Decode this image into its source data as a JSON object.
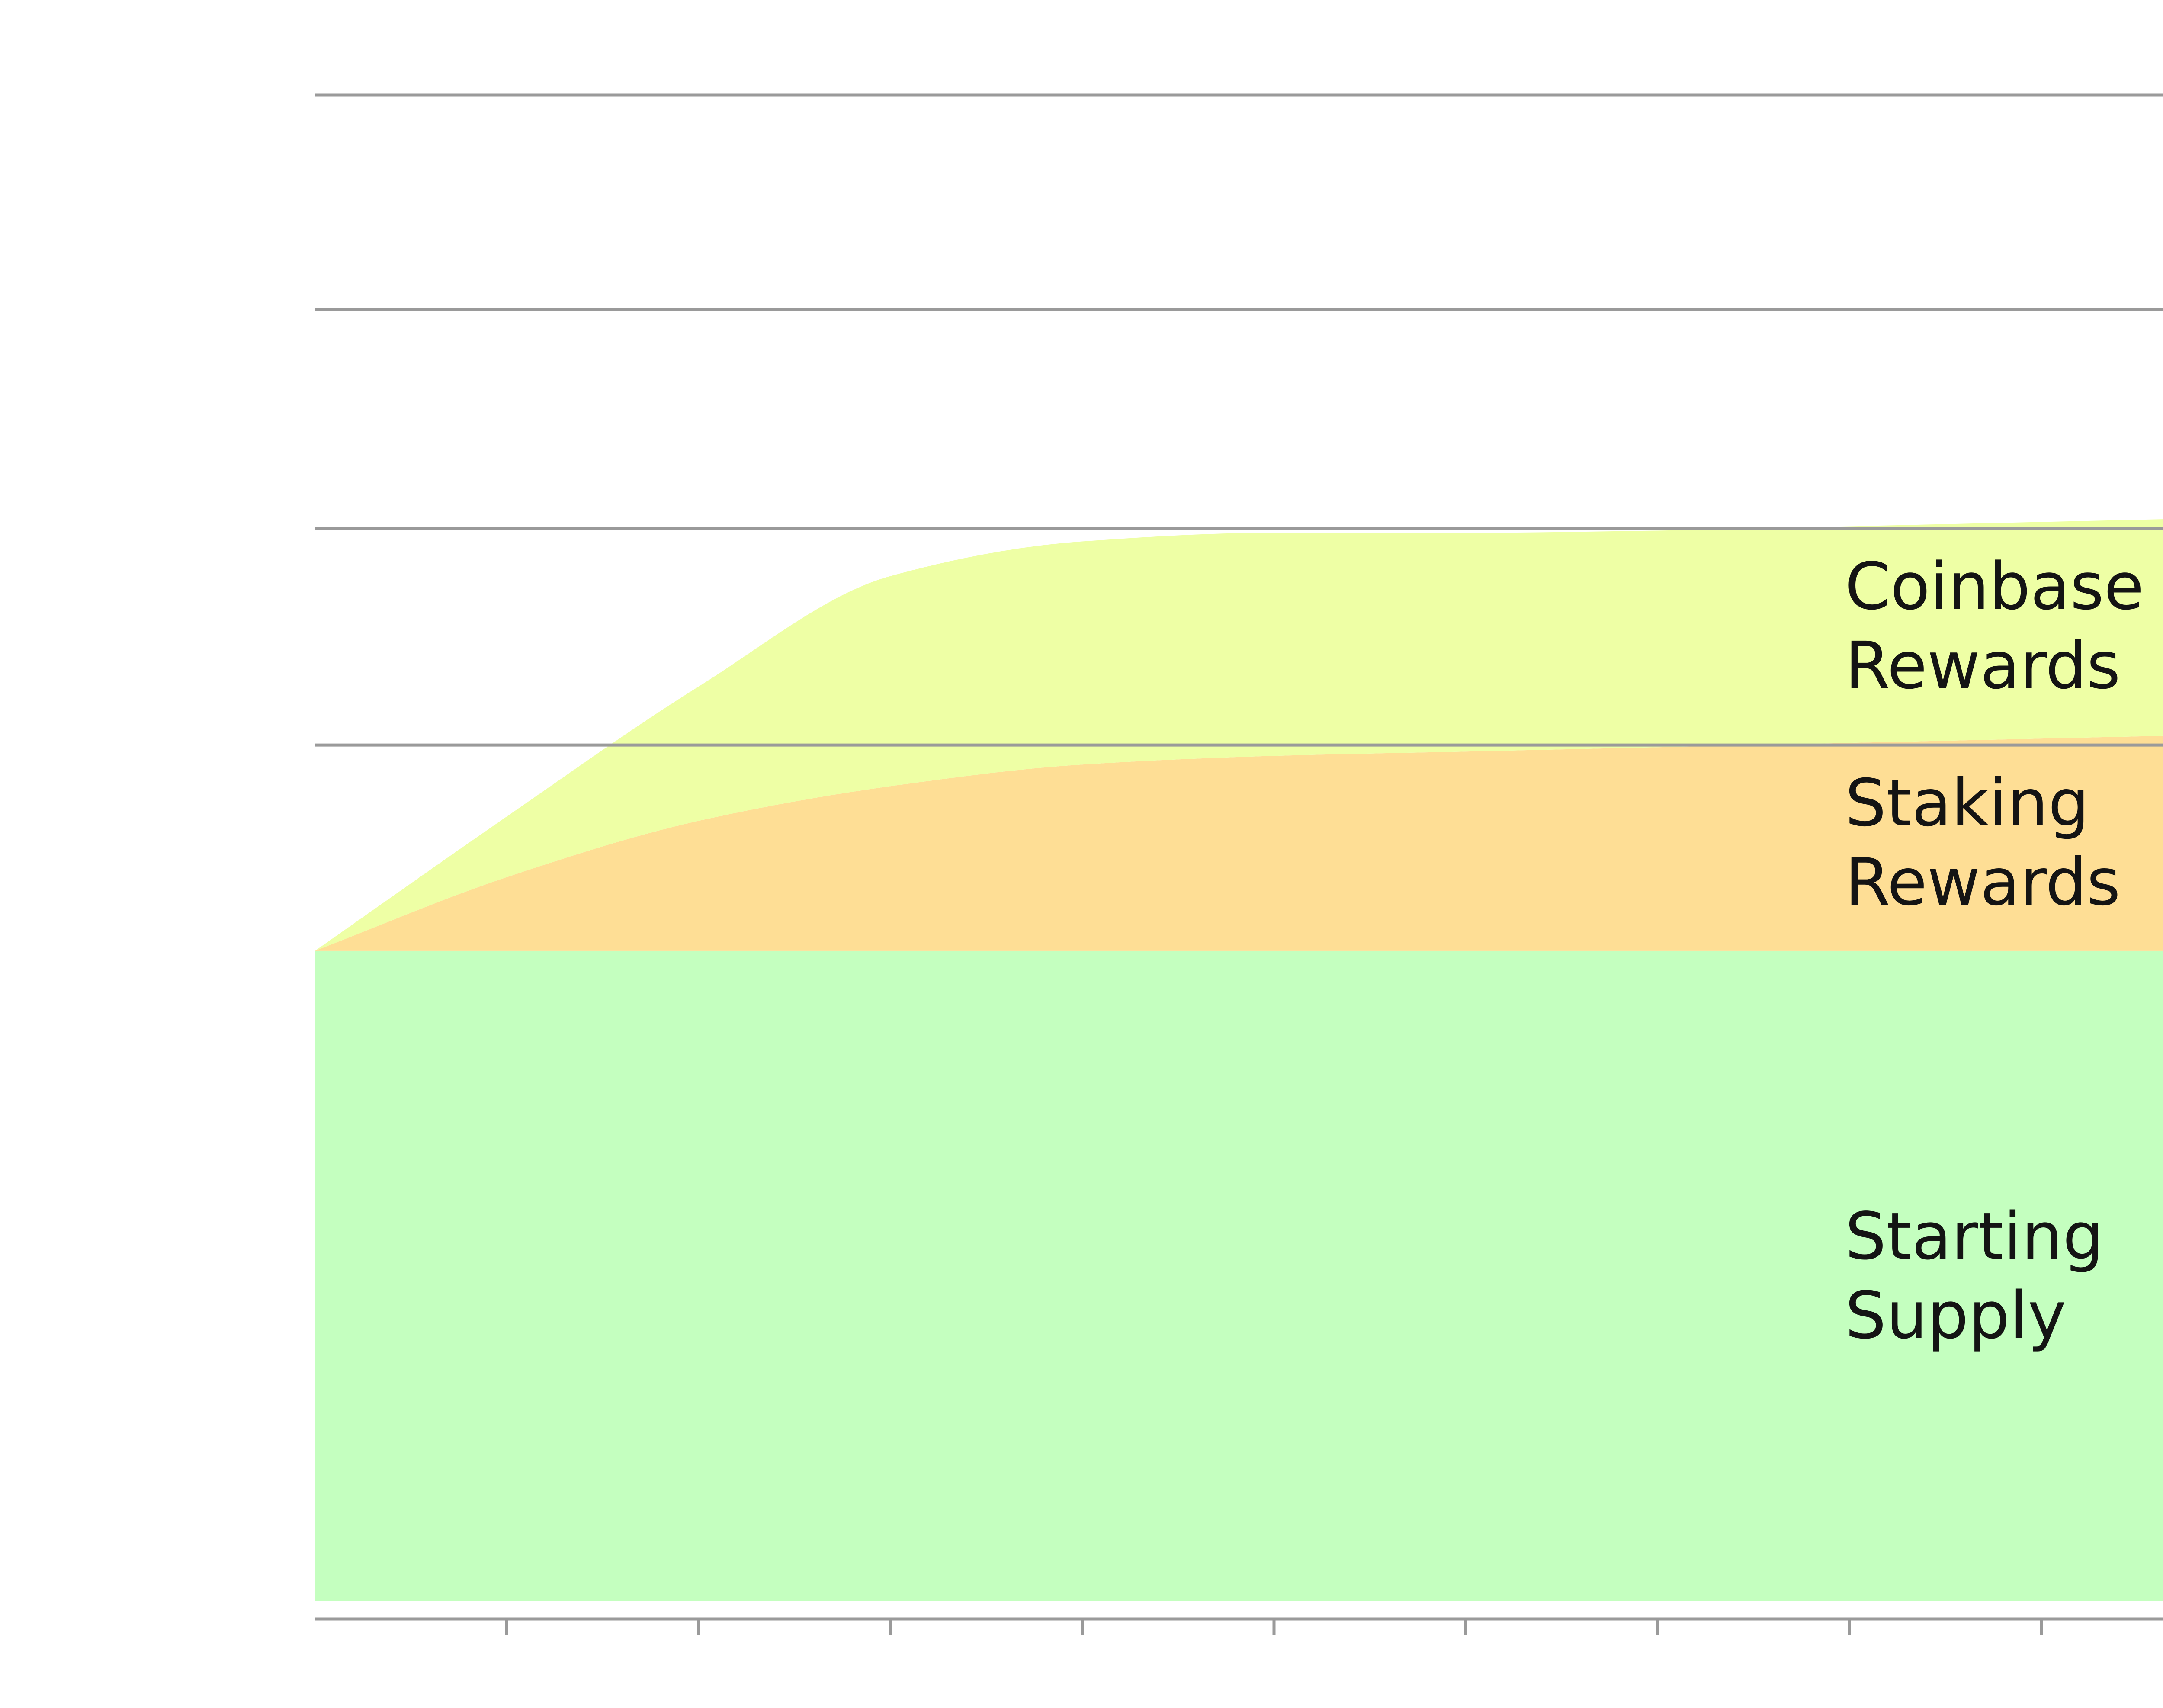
{
  "chart_data": {
    "type": "area",
    "stacked": true,
    "title": "",
    "xlabel": "",
    "ylabel": "",
    "x": [
      0,
      1,
      2,
      3,
      4,
      5,
      6,
      7,
      8,
      9,
      10
    ],
    "xlim": [
      0,
      10
    ],
    "ylim": [
      0,
      7
    ],
    "grid": true,
    "legend": "inline-right",
    "series": [
      {
        "key": "starting_supply",
        "name_lines": [
          "Starting",
          "Supply"
        ],
        "color": "#c4ffbf",
        "values": [
          3.0,
          3.0,
          3.0,
          3.0,
          3.0,
          3.0,
          3.0,
          3.0,
          3.0,
          3.0,
          3.0
        ]
      },
      {
        "key": "staking_rewards",
        "name_lines": [
          "Staking",
          "Rewards"
        ],
        "color": "#fede95",
        "values": [
          0.0,
          0.34,
          0.6,
          0.76,
          0.86,
          0.9,
          0.92,
          0.94,
          0.96,
          0.98,
          1.0
        ]
      },
      {
        "key": "coinbase_rewards",
        "name_lines": [
          "Coinbase",
          "Rewards"
        ],
        "color": "#eeffa5",
        "values": [
          0.0,
          0.28,
          0.62,
          0.97,
          1.03,
          1.03,
          1.01,
          1.0,
          1.0,
          1.0,
          1.0
        ]
      }
    ],
    "gridline_values": [
      0,
      3.95,
      4.95,
      5.96,
      6.95
    ],
    "x_ticks": [
      0,
      1,
      2,
      3,
      4,
      5,
      6,
      7,
      8,
      9,
      10
    ],
    "colors": {
      "grid": "#9a9a9a",
      "axis": "#9a9a9a",
      "label": "#141414"
    }
  }
}
